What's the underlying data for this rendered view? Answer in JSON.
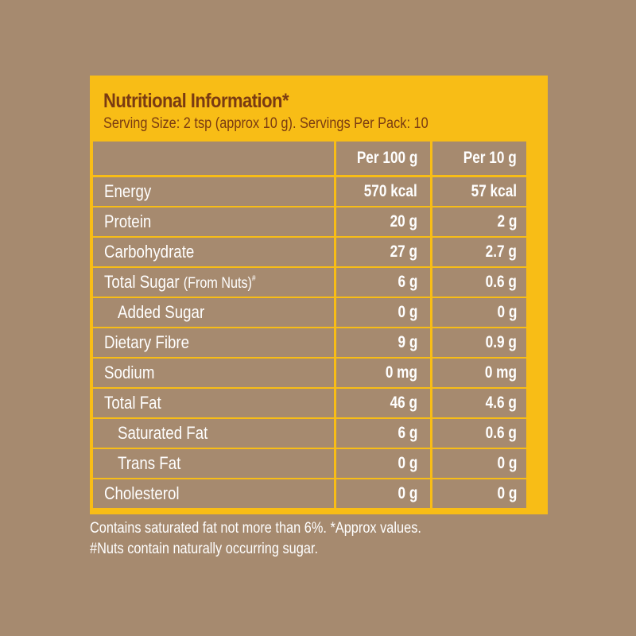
{
  "panel": {
    "title": "Nutritional Information*",
    "subtitle": "Serving Size: 2 tsp (approx 10 g). Servings Per Pack: 10"
  },
  "table": {
    "headers": [
      "",
      "Per 100 g",
      "Per 10 g"
    ],
    "rows": [
      {
        "label": "Energy",
        "label_paren": "",
        "label_sup": "",
        "indent": false,
        "per100": "570 kcal",
        "per10": "57 kcal"
      },
      {
        "label": "Protein",
        "label_paren": "",
        "label_sup": "",
        "indent": false,
        "per100": "20 g",
        "per10": "2 g"
      },
      {
        "label": "Carbohydrate",
        "label_paren": "",
        "label_sup": "",
        "indent": false,
        "per100": "27 g",
        "per10": "2.7 g"
      },
      {
        "label": "Total Sugar ",
        "label_paren": "(From Nuts)",
        "label_sup": "#",
        "indent": false,
        "per100": "6 g",
        "per10": "0.6 g"
      },
      {
        "label": "Added Sugar",
        "label_paren": "",
        "label_sup": "",
        "indent": true,
        "per100": "0 g",
        "per10": "0 g"
      },
      {
        "label": "Dietary Fibre",
        "label_paren": "",
        "label_sup": "",
        "indent": false,
        "per100": "9 g",
        "per10": "0.9 g"
      },
      {
        "label": "Sodium",
        "label_paren": "",
        "label_sup": "",
        "indent": false,
        "per100": "0 mg",
        "per10": "0 mg"
      },
      {
        "label": "Total Fat",
        "label_paren": "",
        "label_sup": "",
        "indent": false,
        "per100": "46 g",
        "per10": "4.6 g"
      },
      {
        "label": "Saturated Fat",
        "label_paren": "",
        "label_sup": "",
        "indent": true,
        "per100": "6 g",
        "per10": "0.6 g"
      },
      {
        "label": "Trans Fat",
        "label_paren": "",
        "label_sup": "",
        "indent": true,
        "per100": "0 g",
        "per10": "0 g"
      },
      {
        "label": "Cholesterol",
        "label_paren": "",
        "label_sup": "",
        "indent": false,
        "per100": "0 g",
        "per10": "0 g"
      }
    ]
  },
  "footnotes": [
    "Contains saturated fat not more than 6%. *Approx values.",
    "#Nuts contain naturally occurring sugar."
  ],
  "colors": {
    "background": "#A68A6F",
    "accent_yellow": "#F8BD16",
    "title_text": "#7A3B12",
    "cell_text": "#FFFFFF"
  }
}
